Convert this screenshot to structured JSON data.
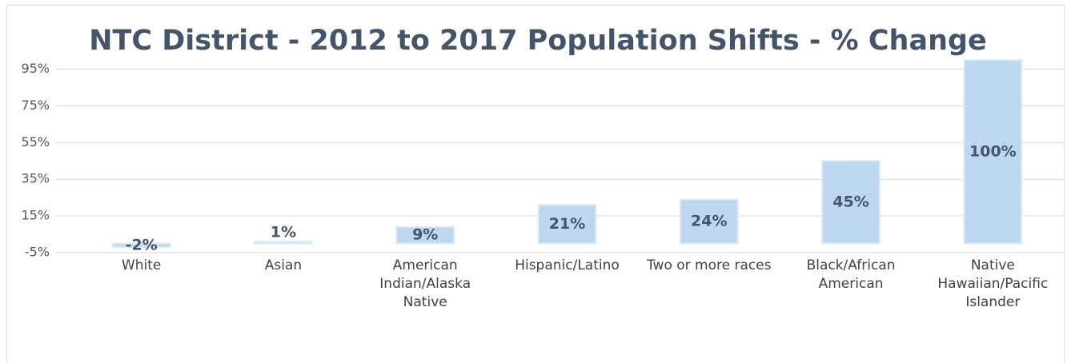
{
  "chart_data": {
    "type": "bar",
    "title": "NTC District - 2012 to 2017 Population Shifts - % Change",
    "categories": [
      "White",
      "Asian",
      "American Indian/Alaska Native",
      "Hispanic/Latino",
      "Two or more races",
      "Black/African American",
      "Native Hawaiian/Pacific Islander"
    ],
    "values": [
      -2,
      1,
      9,
      21,
      24,
      45,
      100
    ],
    "value_labels": [
      "-2%",
      "1%",
      "9%",
      "21%",
      "24%",
      "45%",
      "100%"
    ],
    "color": "#bdd7ee",
    "ylim": [
      -5,
      100
    ],
    "yticks": [
      {
        "value": -5,
        "label": "-5%"
      },
      {
        "value": 15,
        "label": "15%"
      },
      {
        "value": 35,
        "label": "35%"
      },
      {
        "value": 55,
        "label": "55%"
      },
      {
        "value": 75,
        "label": "75%"
      },
      {
        "value": 95,
        "label": "95%"
      }
    ],
    "grid": true
  }
}
